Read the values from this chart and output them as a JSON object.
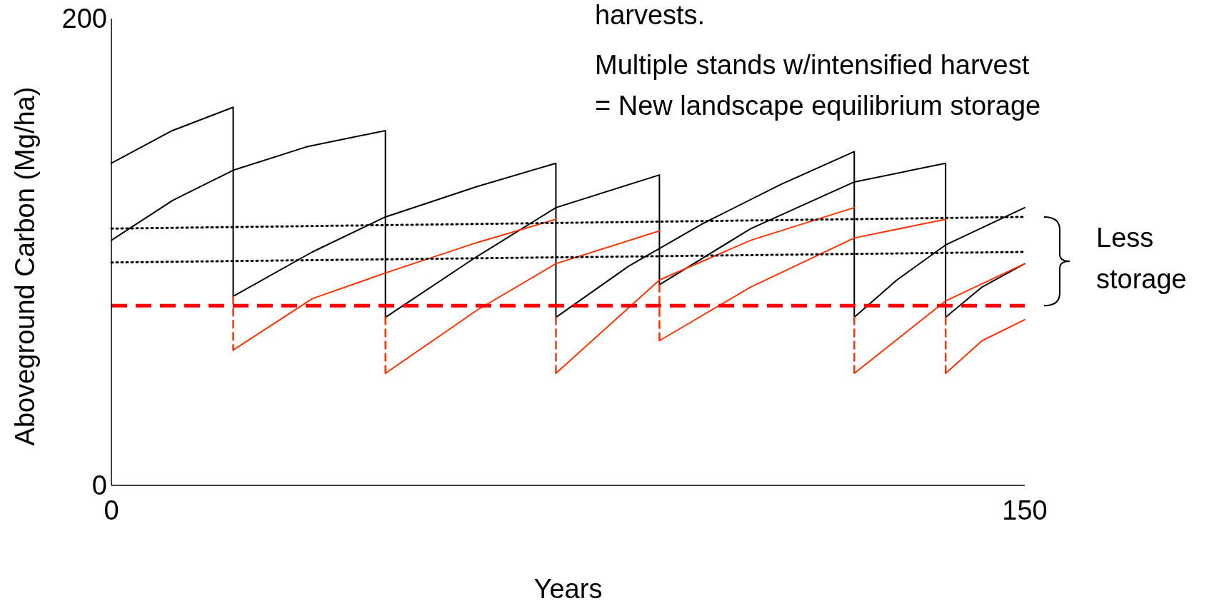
{
  "chart_data": {
    "type": "line",
    "xlabel": "Years",
    "ylabel": "Aboveground Carbon (Mg/ha)",
    "xlim": [
      0,
      150
    ],
    "xticks": [
      0,
      150
    ],
    "ylim": [
      0,
      200
    ],
    "yticks": [
      0,
      200
    ],
    "grid": false,
    "marker": "none",
    "annotations": [
      "harvests.",
      "Multiple stands w/intensified harvest",
      "= New landscape equilibrium storage",
      "Less storage"
    ],
    "ref_lines": [
      {
        "axis": "y",
        "value": 77,
        "label": null,
        "color": "#ff0000",
        "line_style": "dashed"
      }
    ],
    "series": [
      {
        "color": "#000000",
        "line_style": "solid",
        "x": [
          0,
          10,
          20,
          20,
          33,
          45,
          60,
          73,
          73,
          85,
          97,
          110,
          122,
          122,
          129,
          137,
          150
        ],
        "values": [
          138,
          152,
          162,
          81,
          100,
          115,
          128,
          138,
          72,
          94,
          112,
          129,
          143,
          72,
          88,
          103,
          119
        ]
      },
      {
        "color": "#000000",
        "line_style": "solid",
        "x": [
          0,
          10,
          20,
          32,
          45,
          45,
          60,
          73,
          90,
          90,
          105,
          122,
          137,
          137,
          143,
          150
        ],
        "values": [
          105,
          122,
          135,
          145,
          152,
          72,
          98,
          119,
          133,
          86,
          110,
          130,
          138,
          72,
          85,
          95
        ]
      },
      {
        "color": "#ff3300",
        "line_style": "solid",
        "x": [
          20,
          33,
          45,
          60,
          73
        ],
        "values": [
          58,
          80,
          91,
          104,
          114
        ]
      },
      {
        "color": "#ff3300",
        "line_style": "solid",
        "x": [
          45,
          60,
          73,
          90
        ],
        "values": [
          48,
          75,
          95,
          109
        ]
      },
      {
        "color": "#ff3300",
        "line_style": "solid",
        "x": [
          73,
          90,
          105,
          122
        ],
        "values": [
          48,
          88,
          105,
          119
        ]
      },
      {
        "color": "#ff3300",
        "line_style": "solid",
        "x": [
          90,
          105,
          122,
          137
        ],
        "values": [
          62,
          85,
          106,
          114
        ]
      },
      {
        "color": "#ff3300",
        "line_style": "solid",
        "x": [
          122,
          137,
          150
        ],
        "values": [
          48,
          79,
          95
        ]
      },
      {
        "color": "#ff3300",
        "line_style": "solid",
        "x": [
          137,
          143,
          150
        ],
        "values": [
          48,
          62,
          71
        ]
      },
      {
        "color": "#ff3300",
        "line_style": "dashed",
        "x": [
          20,
          20
        ],
        "values": [
          81,
          58
        ]
      },
      {
        "color": "#ff3300",
        "line_style": "dashed",
        "x": [
          45,
          45
        ],
        "values": [
          72,
          48
        ]
      },
      {
        "color": "#ff3300",
        "line_style": "dashed",
        "x": [
          73,
          73
        ],
        "values": [
          72,
          48
        ]
      },
      {
        "color": "#ff3300",
        "line_style": "dashed",
        "x": [
          90,
          90
        ],
        "values": [
          86,
          62
        ]
      },
      {
        "color": "#ff3300",
        "line_style": "dashed",
        "x": [
          122,
          122
        ],
        "values": [
          72,
          48
        ]
      },
      {
        "color": "#ff3300",
        "line_style": "dashed",
        "x": [
          137,
          137
        ],
        "values": [
          72,
          48
        ]
      },
      {
        "color": "#000000",
        "line_style": "dotted",
        "x": [
          0,
          150
        ],
        "values": [
          110,
          115
        ]
      },
      {
        "color": "#000000",
        "line_style": "dotted",
        "x": [
          0,
          150
        ],
        "values": [
          95.5,
          100
        ]
      }
    ]
  }
}
